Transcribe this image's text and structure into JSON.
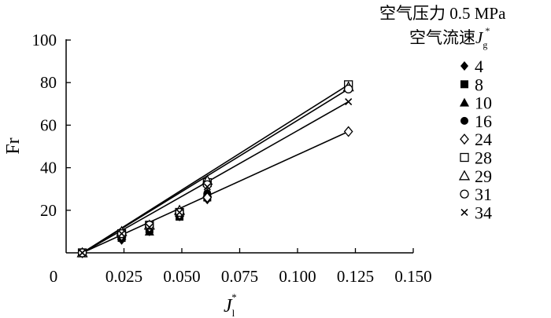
{
  "chart_data": {
    "type": "scatter",
    "title": "",
    "xlabel": "J",
    "xlabel_subscript": "l",
    "xlabel_superscript": "*",
    "ylabel": "Fr",
    "xlim": [
      0,
      0.15
    ],
    "ylim": [
      0,
      100
    ],
    "x_ticks": [
      "0",
      "0.025",
      "0.050",
      "0.075",
      "0.100",
      "0.125",
      "0.150"
    ],
    "y_ticks": [
      "0",
      "20",
      "40",
      "60",
      "80",
      "100"
    ],
    "grid": false,
    "legend_position": "right",
    "legend_title_line1": "空气压力 0.5 MPa",
    "legend_title_line2": "空气流速",
    "legend_title_symbol": "J",
    "legend_title_subscript": "g",
    "legend_title_superscript": "*",
    "series": [
      {
        "name": "4",
        "marker": "filled-diamond",
        "x": [
          0.007,
          0.024,
          0.036,
          0.049,
          0.061
        ],
        "y": [
          0,
          6,
          10,
          17,
          25
        ]
      },
      {
        "name": "8",
        "marker": "filled-square",
        "x": [
          0.007,
          0.024,
          0.036,
          0.049,
          0.061
        ],
        "y": [
          0,
          7,
          11,
          17,
          26
        ]
      },
      {
        "name": "10",
        "marker": "filled-triangle",
        "x": [
          0.007,
          0.024,
          0.036,
          0.049,
          0.061
        ],
        "y": [
          0,
          8,
          10,
          19,
          28
        ]
      },
      {
        "name": "16",
        "marker": "filled-circle",
        "x": [
          0.007,
          0.024,
          0.036,
          0.049,
          0.061
        ],
        "y": [
          0,
          9,
          12,
          19,
          28
        ]
      },
      {
        "name": "24",
        "marker": "open-diamond",
        "x": [
          0.007,
          0.024,
          0.036,
          0.049,
          0.061,
          0.122
        ],
        "y": [
          0,
          8,
          12,
          18,
          26,
          57
        ]
      },
      {
        "name": "28",
        "marker": "open-square",
        "x": [
          0.007,
          0.024,
          0.036,
          0.049,
          0.061,
          0.122
        ],
        "y": [
          0,
          9,
          13,
          19,
          33,
          79
        ]
      },
      {
        "name": "29",
        "marker": "open-triangle",
        "x": [
          0.007,
          0.024,
          0.036,
          0.049,
          0.061,
          0.122
        ],
        "y": [
          0,
          10,
          13,
          20,
          34,
          78
        ]
      },
      {
        "name": "31",
        "marker": "open-circle",
        "x": [
          0.007,
          0.024,
          0.036,
          0.049,
          0.061,
          0.122
        ],
        "y": [
          0,
          9,
          13,
          19,
          32,
          77
        ]
      },
      {
        "name": "34",
        "marker": "cross",
        "x": [
          0.007,
          0.024,
          0.036,
          0.049,
          0.061,
          0.122
        ],
        "y": [
          0,
          9,
          12,
          19,
          31,
          71
        ]
      }
    ],
    "fit_lines": [
      {
        "x": [
          0.007,
          0.122
        ],
        "y": [
          0,
          57
        ]
      },
      {
        "x": [
          0.007,
          0.122
        ],
        "y": [
          0,
          71
        ]
      },
      {
        "x": [
          0.007,
          0.122
        ],
        "y": [
          0,
          77
        ]
      },
      {
        "x": [
          0.007,
          0.122
        ],
        "y": [
          0,
          79
        ]
      }
    ]
  }
}
